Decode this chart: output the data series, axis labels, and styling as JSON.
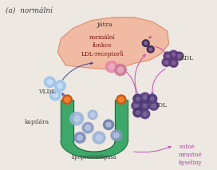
{
  "title": "(a)  normální",
  "background_color": "#ede8e2",
  "liver_color": "#f2b49a",
  "liver_outline": "#d89070",
  "capillary_color": "#3ea86a",
  "capillary_outline": "#2a7a4a",
  "capillary_inner": "#1a5535",
  "text_jatra": "játra",
  "text_normal": "normální\nfunkce\nLDL-receptorů",
  "text_vldl": "VLDL",
  "text_ldl": "LDL",
  "text_idl": "IDL",
  "text_kapilara": "kapilára",
  "text_lipoprot": "lipoproteinlipasa",
  "text_volne": "volné\nmrastné\nkyseliny",
  "arrow_magenta": "#c050b0",
  "arrow_blue": "#4040a0",
  "font_color": "#3a3a3a",
  "font_magenta": "#b040a0",
  "vldl_color": "#a0c4e8",
  "vldl_spot": "#d0e8ff",
  "ldl_color": "#5a3875",
  "ldl_spot": "#9070b0",
  "idl_color": "#4a3570",
  "idl_spot": "#8878a8",
  "rem_color1": "#e888aa",
  "rem_color2": "#d07898",
  "rem_spot": "#f0b8cc",
  "small_dark": "#3a2555",
  "orange_outer": "#c85818",
  "orange_inner": "#f08030",
  "cap_p1": "#9ab4d8",
  "cap_p2": "#8898c0",
  "cap_p3": "#7888b8",
  "cap_p4": "#6878a8"
}
